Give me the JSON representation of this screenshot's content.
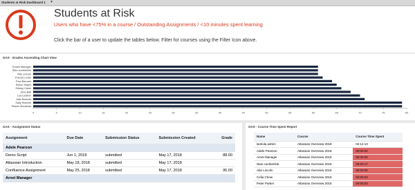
{
  "tab": "Students at Risk Dashboard 1",
  "header": {
    "title": "Students at Risk",
    "subtitle": "Users who have <75% in a course / Outstanding Assignments / <10 minutes spent learning",
    "instruction": "Click the bar of a user to update the tables below. Filter for courses using the Filter Icon above."
  },
  "chart_data": {
    "type": "bar",
    "orientation": "horizontal",
    "title": "GAS - Grades Ascending Chart View",
    "categories": [
      "Ernest Manager",
      "Stan cumberlink",
      "Abe Lincoln",
      "Francis Lewis",
      "Paul Barnam",
      "Simon Mayer",
      "Sidney Caine",
      "Jane Ball",
      "Lea Leather",
      "Julia Roberts",
      "Sally Roberts",
      "Shawn Monahan"
    ],
    "values": [
      61,
      61,
      61,
      62,
      64,
      65,
      66,
      68,
      70,
      71,
      79,
      79
    ],
    "color": "#1b2740",
    "xlim": [
      0,
      80
    ],
    "xticks": [
      0,
      5,
      10,
      15,
      20,
      25,
      30,
      35,
      40,
      45,
      50,
      55,
      60,
      65,
      70,
      75,
      80
    ]
  },
  "assignment_table": {
    "title": "GAS - Assignment Status",
    "columns": [
      "Assignment",
      "Due Date",
      "Submission Status",
      "Submission Created",
      "Grade"
    ],
    "groups": [
      {
        "name": "Adele Pearson",
        "rows": [
          [
            "Demo Script",
            "Jun 1, 2018",
            "submitted",
            "May 17, 2018",
            "88.00"
          ],
          [
            "Atlassian Introduction",
            "May 18, 2018",
            "submitted",
            "May 17, 2018",
            null
          ],
          [
            "Confluence Assignment",
            "May 25, 2018",
            "submitted",
            "May 17, 2018",
            "95.00"
          ]
        ]
      },
      {
        "name": "Arnet Manager",
        "rows": []
      }
    ]
  },
  "time_table": {
    "title": "GAS - Course Time Spent Report",
    "columns": [
      "Name",
      "Course",
      "Course Time Spent"
    ],
    "highlight_color": "#e06666",
    "rows": [
      [
        "lamlola admin",
        "Atlassian Overview 2018",
        "02:14:13"
      ],
      [
        "Adele Pearson",
        "Atlassian Overview 2018",
        "00:00:00"
      ],
      [
        "Arnet Manager",
        "Atlassian Overview 2018",
        "00:00:00"
      ],
      [
        "Stan cumberlink",
        "Atlassian Overview 2018",
        "00:00:17"
      ],
      [
        "Abe Lincoln",
        "Atlassian Overview 2018",
        "00:00:00"
      ],
      [
        "Celia Chow",
        "Atlassian Overview 2018",
        "00:00:03"
      ],
      [
        "Peter Parker",
        "Atlassian Overview 2018",
        "00:00:03"
      ]
    ],
    "highlighted": [
      false,
      true,
      true,
      true,
      true,
      true,
      true
    ]
  }
}
